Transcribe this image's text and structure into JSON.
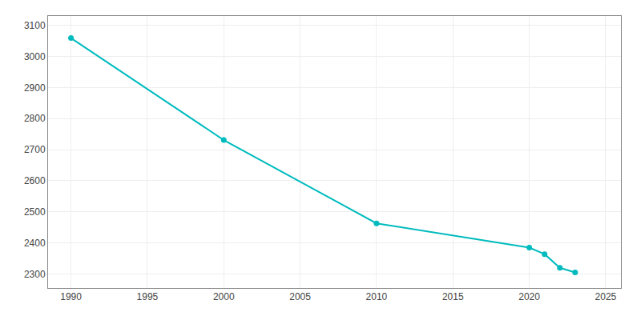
{
  "chart_data": {
    "type": "line",
    "x": [
      1990,
      2000,
      2010,
      2020,
      2021,
      2022,
      2023
    ],
    "values": [
      3059,
      2731,
      2463,
      2385,
      2364,
      2320,
      2305
    ],
    "color": "#00BBBE",
    "marker": "circle",
    "line_style": "solid",
    "xlim": [
      1988.5,
      2026
    ],
    "ylim": [
      2255,
      3130
    ],
    "xticks": [
      1990,
      1995,
      2000,
      2005,
      2010,
      2015,
      2020,
      2025
    ],
    "yticks": [
      2300,
      2400,
      2500,
      2600,
      2700,
      2800,
      2900,
      3000,
      3100
    ],
    "grid": true
  }
}
